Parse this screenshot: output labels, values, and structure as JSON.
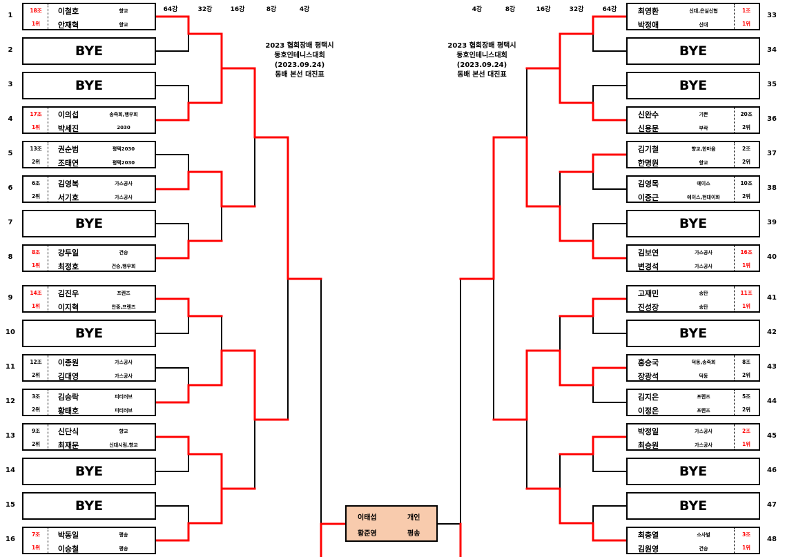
{
  "title_lines": [
    "2023 협회장배 평택시",
    "동호인테니스대회",
    "(2023.09.24)",
    "동배 본선 대진표"
  ],
  "rounds_left": [
    "64강",
    "32강",
    "16강",
    "8강",
    "4강"
  ],
  "rounds_right": [
    "4강",
    "8강",
    "16강",
    "32강",
    "64강"
  ],
  "colors": {
    "win_line": "#ff0000",
    "line": "#000000",
    "final_fill": "#f8cbad",
    "top_seed_text": "#ff0000"
  },
  "left_slots": [
    {
      "num": "1",
      "group": "18조",
      "rank": "1위",
      "players": [
        {
          "name": "이철호",
          "club": "향교"
        },
        {
          "name": "안재혁",
          "club": "향교"
        }
      ]
    },
    {
      "num": "2",
      "bye": "BYE"
    },
    {
      "num": "3",
      "bye": "BYE"
    },
    {
      "num": "4",
      "group": "17조",
      "rank": "1위",
      "players": [
        {
          "name": "이의섭",
          "club": "송죽회,행우회"
        },
        {
          "name": "박세진",
          "club": "2030"
        }
      ]
    },
    {
      "num": "5",
      "group": "13조",
      "rank": "2위",
      "players": [
        {
          "name": "권순범",
          "club": "평택2030"
        },
        {
          "name": "조태연",
          "club": "평택2030"
        }
      ]
    },
    {
      "num": "6",
      "group": "6조",
      "rank": "2위",
      "players": [
        {
          "name": "김영복",
          "club": "가스공사"
        },
        {
          "name": "서기호",
          "club": "가스공사"
        }
      ]
    },
    {
      "num": "7",
      "bye": "BYE"
    },
    {
      "num": "8",
      "group": "8조",
      "rank": "1위",
      "players": [
        {
          "name": "강두일",
          "club": "건승"
        },
        {
          "name": "최정호",
          "club": "건승,행우회"
        }
      ]
    },
    {
      "num": "9",
      "group": "14조",
      "rank": "1위",
      "players": [
        {
          "name": "김진우",
          "club": "프렌즈"
        },
        {
          "name": "이지혁",
          "club": "안중,프렌즈"
        }
      ]
    },
    {
      "num": "10",
      "bye": "BYE"
    },
    {
      "num": "11",
      "group": "12조",
      "rank": "2위",
      "players": [
        {
          "name": "이종원",
          "club": "가스공사"
        },
        {
          "name": "김대영",
          "club": "가스공사"
        }
      ]
    },
    {
      "num": "12",
      "group": "3조",
      "rank": "2위",
      "players": [
        {
          "name": "김승락",
          "club": "피티러브"
        },
        {
          "name": "황태호",
          "club": "피티러브"
        }
      ]
    },
    {
      "num": "13",
      "group": "9조",
      "rank": "2위",
      "players": [
        {
          "name": "신단식",
          "club": "향교"
        },
        {
          "name": "최재문",
          "club": "신대시림,향교"
        }
      ]
    },
    {
      "num": "14",
      "bye": "BYE"
    },
    {
      "num": "15",
      "bye": "BYE"
    },
    {
      "num": "16",
      "group": "7조",
      "rank": "1위",
      "players": [
        {
          "name": "박동일",
          "club": "평송"
        },
        {
          "name": "이승철",
          "club": "평송"
        }
      ]
    }
  ],
  "right_slots": [
    {
      "num": "33",
      "group": "1조",
      "rank": "1위",
      "players": [
        {
          "name": "최영환",
          "club": "신대,은실신협"
        },
        {
          "name": "박정애",
          "club": "신대"
        }
      ]
    },
    {
      "num": "34",
      "bye": "BYE"
    },
    {
      "num": "35",
      "bye": "BYE"
    },
    {
      "num": "36",
      "group": "20조",
      "rank": "2위",
      "players": [
        {
          "name": "신완수",
          "club": "기쁜"
        },
        {
          "name": "신용문",
          "club": "부락"
        }
      ]
    },
    {
      "num": "37",
      "group": "2조",
      "rank": "2위",
      "players": [
        {
          "name": "김기철",
          "club": "향교,한마음"
        },
        {
          "name": "한명원",
          "club": "향교"
        }
      ]
    },
    {
      "num": "38",
      "group": "10조",
      "rank": "2위",
      "players": [
        {
          "name": "김영목",
          "club": "에이스"
        },
        {
          "name": "이중근",
          "club": "에이스,현대이화"
        }
      ]
    },
    {
      "num": "39",
      "bye": "BYE"
    },
    {
      "num": "40",
      "group": "16조",
      "rank": "1위",
      "players": [
        {
          "name": "김보연",
          "club": "가스공사"
        },
        {
          "name": "변경석",
          "club": "가스공사"
        }
      ]
    },
    {
      "num": "41",
      "group": "11조",
      "rank": "1위",
      "players": [
        {
          "name": "고재민",
          "club": "송탄"
        },
        {
          "name": "진성장",
          "club": "송탄"
        }
      ]
    },
    {
      "num": "42",
      "bye": "BYE"
    },
    {
      "num": "43",
      "group": "8조",
      "rank": "2위",
      "players": [
        {
          "name": "홍승국",
          "club": "덕동,송죽회"
        },
        {
          "name": "장광석",
          "club": "덕동"
        }
      ]
    },
    {
      "num": "44",
      "group": "5조",
      "rank": "2위",
      "players": [
        {
          "name": "김지은",
          "club": "프렌즈"
        },
        {
          "name": "이정은",
          "club": "프렌즈"
        }
      ]
    },
    {
      "num": "45",
      "group": "2조",
      "rank": "1위",
      "players": [
        {
          "name": "박정일",
          "club": "가스공사"
        },
        {
          "name": "최승원",
          "club": "가스공사"
        }
      ]
    },
    {
      "num": "46",
      "bye": "BYE"
    },
    {
      "num": "47",
      "bye": "BYE"
    },
    {
      "num": "48",
      "group": "3조",
      "rank": "1위",
      "players": [
        {
          "name": "최충열",
          "club": "소사벌"
        },
        {
          "name": "김원영",
          "club": "건승"
        }
      ]
    }
  ],
  "final": {
    "players": [
      {
        "name": "이태섭",
        "club": "개인"
      },
      {
        "name": "황준영",
        "club": "평송"
      }
    ]
  }
}
